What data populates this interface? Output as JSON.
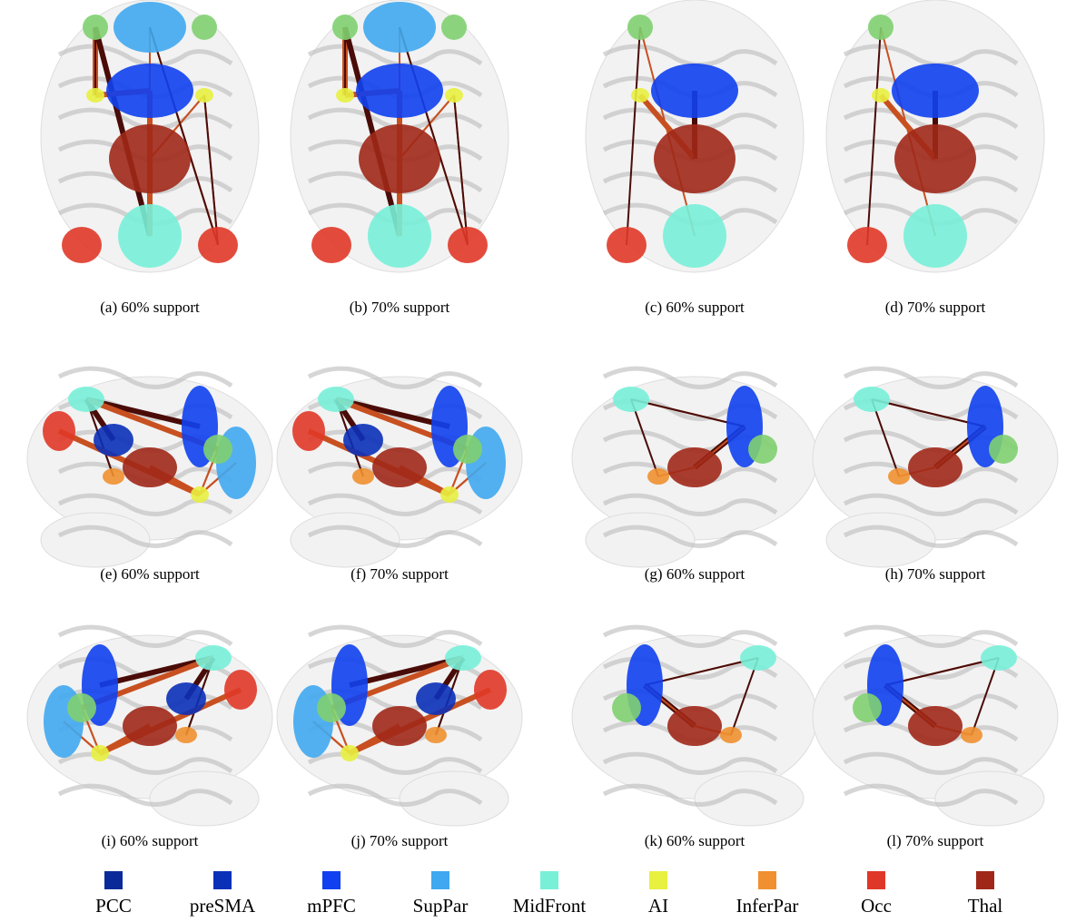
{
  "panels": [
    {
      "caption": "(a) 60% support"
    },
    {
      "caption": "(b) 70% support"
    },
    {
      "caption": "(c) 60% support"
    },
    {
      "caption": "(d) 70% support"
    },
    {
      "caption": "(e) 60% support"
    },
    {
      "caption": "(f) 70% support"
    },
    {
      "caption": "(g) 60% support"
    },
    {
      "caption": "(h) 70% support"
    },
    {
      "caption": "(i) 60% support"
    },
    {
      "caption": "(j) 70% support"
    },
    {
      "caption": "(k) 60% support"
    },
    {
      "caption": "(l) 70% support"
    }
  ],
  "legend": [
    {
      "label": "PCC",
      "color": "#0a2a9a"
    },
    {
      "label": "preSMA",
      "color": "#0b30b8"
    },
    {
      "label": "mPFC",
      "color": "#1040f0"
    },
    {
      "label": "SupPar",
      "color": "#40a8f0"
    },
    {
      "label": "MidFront",
      "color": "#78f0d8"
    },
    {
      "label": "AI",
      "color": "#e8f040"
    },
    {
      "label": "InferPar",
      "color": "#f09030"
    },
    {
      "label": "Occ",
      "color": "#e03828"
    },
    {
      "label": "Thal",
      "color": "#a02818"
    }
  ]
}
